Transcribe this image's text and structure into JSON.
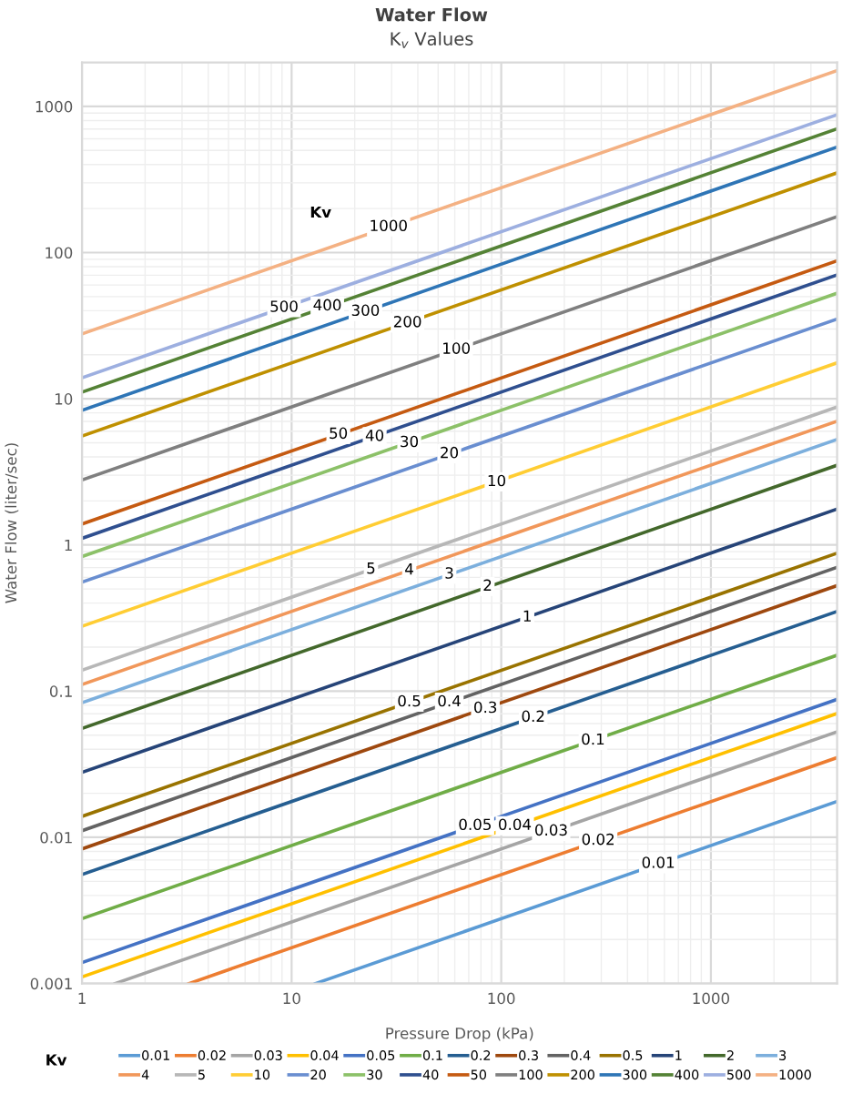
{
  "chart_data": {
    "type": "line",
    "title": "Water Flow",
    "subtitle": "K$_{v}$ Values",
    "xlabel": "Pressure Drop (kPa)",
    "ylabel": "Water Flow (liter/sec)",
    "legend_title": "Kv",
    "log": "xy",
    "xlim": [
      1,
      4000
    ],
    "ylim": [
      0.001,
      2000
    ],
    "xticks": [
      1,
      10,
      100,
      1000
    ],
    "yticks": [
      0.001,
      0.01,
      0.1,
      1,
      10,
      100,
      1000
    ],
    "grid": true,
    "legend": "bottom",
    "marker": "none",
    "line_style": "solid",
    "series": [
      {
        "name": "0.01",
        "color": "#5b9bd5",
        "x": [
          13,
          4000
        ],
        "values": [
          0.001,
          0.0176
        ]
      },
      {
        "name": "0.02",
        "color": "#ed7d31",
        "x": [
          3.24,
          4000
        ],
        "values": [
          0.001,
          0.0351
        ]
      },
      {
        "name": "0.03",
        "color": "#a5a5a5",
        "x": [
          1.44,
          4000
        ],
        "values": [
          0.001,
          0.0527
        ]
      },
      {
        "name": "0.04",
        "color": "#ffc000",
        "x": [
          1,
          4000
        ],
        "values": [
          0.00111,
          0.0703
        ]
      },
      {
        "name": "0.05",
        "color": "#4472c4",
        "x": [
          1,
          4000
        ],
        "values": [
          0.00139,
          0.0878
        ]
      },
      {
        "name": "0.1",
        "color": "#70ad47",
        "x": [
          1,
          4000
        ],
        "values": [
          0.00278,
          0.176
        ]
      },
      {
        "name": "0.2",
        "color": "#255e91",
        "x": [
          1,
          4000
        ],
        "values": [
          0.00556,
          0.351
        ]
      },
      {
        "name": "0.3",
        "color": "#9e480e",
        "x": [
          1,
          4000
        ],
        "values": [
          0.00833,
          0.527
        ]
      },
      {
        "name": "0.4",
        "color": "#636363",
        "x": [
          1,
          4000
        ],
        "values": [
          0.0111,
          0.703
        ]
      },
      {
        "name": "0.5",
        "color": "#997300",
        "x": [
          1,
          4000
        ],
        "values": [
          0.0139,
          0.878
        ]
      },
      {
        "name": "1",
        "color": "#264478",
        "x": [
          1,
          4000
        ],
        "values": [
          0.0278,
          1.76
        ]
      },
      {
        "name": "2",
        "color": "#43682b",
        "x": [
          1,
          4000
        ],
        "values": [
          0.0556,
          3.51
        ]
      },
      {
        "name": "3",
        "color": "#7cafdd",
        "x": [
          1,
          4000
        ],
        "values": [
          0.0833,
          5.27
        ]
      },
      {
        "name": "4",
        "color": "#f1975a",
        "x": [
          1,
          4000
        ],
        "values": [
          0.111,
          7.03
        ]
      },
      {
        "name": "5",
        "color": "#b7b7b7",
        "x": [
          1,
          4000
        ],
        "values": [
          0.139,
          8.78
        ]
      },
      {
        "name": "10",
        "color": "#ffcd33",
        "x": [
          1,
          4000
        ],
        "values": [
          0.278,
          17.6
        ]
      },
      {
        "name": "20",
        "color": "#698ed0",
        "x": [
          1,
          4000
        ],
        "values": [
          0.556,
          35.1
        ]
      },
      {
        "name": "30",
        "color": "#8cc168",
        "x": [
          1,
          4000
        ],
        "values": [
          0.833,
          52.7
        ]
      },
      {
        "name": "40",
        "color": "#2f4f8f",
        "x": [
          1,
          4000
        ],
        "values": [
          1.11,
          70.3
        ]
      },
      {
        "name": "50",
        "color": "#c55a11",
        "x": [
          1,
          4000
        ],
        "values": [
          1.39,
          87.8
        ]
      },
      {
        "name": "100",
        "color": "#7f7f7f",
        "x": [
          1,
          4000
        ],
        "values": [
          2.78,
          176
        ]
      },
      {
        "name": "200",
        "color": "#bf9000",
        "x": [
          1,
          4000
        ],
        "values": [
          5.56,
          351
        ]
      },
      {
        "name": "300",
        "color": "#2e75b6",
        "x": [
          1,
          4000
        ],
        "values": [
          8.33,
          527
        ]
      },
      {
        "name": "400",
        "color": "#548235",
        "x": [
          1,
          4000
        ],
        "values": [
          11.1,
          703
        ]
      },
      {
        "name": "500",
        "color": "#9dafe0",
        "x": [
          1,
          4000
        ],
        "values": [
          13.9,
          878
        ]
      },
      {
        "name": "1000",
        "color": "#f4b183",
        "x": [
          1,
          4000
        ],
        "values": [
          27.8,
          1757
        ]
      }
    ],
    "annotations": [
      {
        "text": "1000",
        "x": 29,
        "y": 150
      },
      {
        "text": "500",
        "x": 9.2,
        "y": 42
      },
      {
        "text": "400",
        "x": 14.8,
        "y": 43
      },
      {
        "text": "300",
        "x": 22.5,
        "y": 39.5
      },
      {
        "text": "200",
        "x": 35.7,
        "y": 33
      },
      {
        "text": "100",
        "x": 61,
        "y": 21.7
      },
      {
        "text": "50",
        "x": 16.7,
        "y": 5.7
      },
      {
        "text": "40",
        "x": 24.9,
        "y": 5.5
      },
      {
        "text": "30",
        "x": 36.4,
        "y": 5.0
      },
      {
        "text": "20",
        "x": 56.5,
        "y": 4.2
      },
      {
        "text": "10",
        "x": 95,
        "y": 2.7
      },
      {
        "text": "5",
        "x": 23.9,
        "y": 0.68
      },
      {
        "text": "4",
        "x": 36.4,
        "y": 0.67
      },
      {
        "text": "3",
        "x": 56.5,
        "y": 0.63
      },
      {
        "text": "2",
        "x": 86,
        "y": 0.52
      },
      {
        "text": "1",
        "x": 133,
        "y": 0.32
      },
      {
        "text": "0.5",
        "x": 36.4,
        "y": 0.084
      },
      {
        "text": "0.4",
        "x": 56.5,
        "y": 0.084
      },
      {
        "text": "0.3",
        "x": 84,
        "y": 0.076
      },
      {
        "text": "0.2",
        "x": 142,
        "y": 0.066
      },
      {
        "text": "0.1",
        "x": 274,
        "y": 0.046
      },
      {
        "text": "0.05",
        "x": 75,
        "y": 0.012
      },
      {
        "text": "0.04",
        "x": 116,
        "y": 0.012
      },
      {
        "text": "0.03",
        "x": 173,
        "y": 0.011
      },
      {
        "text": "0.02",
        "x": 290,
        "y": 0.0095
      },
      {
        "text": "0.01",
        "x": 561,
        "y": 0.0066
      },
      "Kv"
    ]
  }
}
